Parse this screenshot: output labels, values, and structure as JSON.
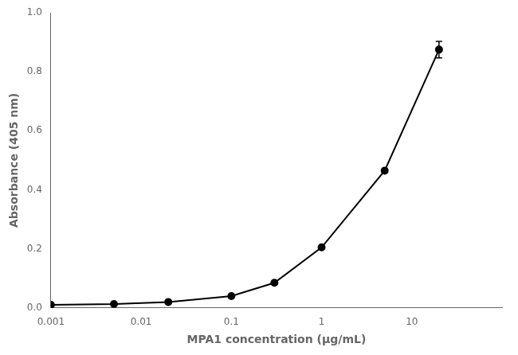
{
  "chart_data": {
    "type": "line",
    "x": [
      0.001,
      0.005,
      0.02,
      0.1,
      0.3,
      1.0,
      5.0,
      20.0
    ],
    "values": [
      0.01,
      0.013,
      0.02,
      0.04,
      0.085,
      0.205,
      0.465,
      0.875
    ],
    "yerr": [
      0.0,
      0.0,
      0.0,
      0.0,
      0.0,
      0.0,
      0.0,
      0.028
    ],
    "xlabel": "MPA1 concentration (μg/mL)",
    "ylabel": "Absorbance (405 nm)",
    "log": "x",
    "xlim": [
      0.001,
      100
    ],
    "xticks": [
      0.001,
      0.01,
      0.1,
      1,
      10
    ],
    "ylim": [
      0.0,
      1.0
    ],
    "yticks": [
      {
        "value": 0.0,
        "label": "0.0"
      },
      0.2,
      0.4,
      0.6,
      0.8,
      {
        "value": 1.0,
        "label": "1.0"
      }
    ],
    "color": "#000000",
    "marker": "circle",
    "grid": false
  }
}
